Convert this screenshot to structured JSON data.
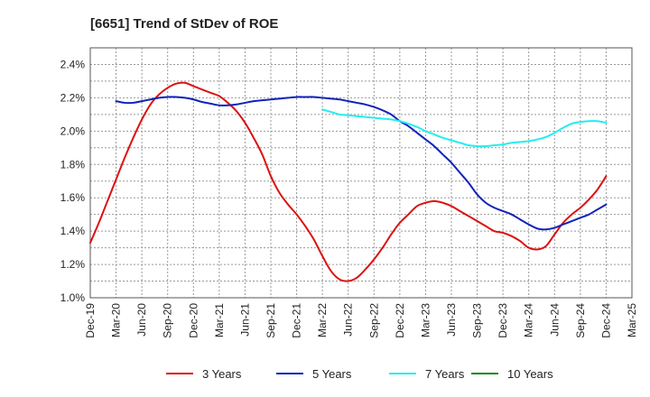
{
  "chart_data": {
    "type": "line",
    "title": "[6651]  Trend of StDev of ROE",
    "xlabel": "",
    "ylabel": "",
    "x_ticks": [
      "Dec-19",
      "Mar-20",
      "Jun-20",
      "Sep-20",
      "Dec-20",
      "Mar-21",
      "Jun-21",
      "Sep-21",
      "Dec-21",
      "Mar-22",
      "Jun-22",
      "Sep-22",
      "Dec-22",
      "Mar-23",
      "Jun-23",
      "Sep-23",
      "Dec-23",
      "Mar-24",
      "Jun-24",
      "Sep-24",
      "Dec-24",
      "Mar-25"
    ],
    "y_ticks": [
      "1.0%",
      "1.2%",
      "1.4%",
      "1.6%",
      "1.8%",
      "2.0%",
      "2.2%",
      "2.4%"
    ],
    "y_tick_values": [
      1.0,
      1.2,
      1.4,
      1.6,
      1.8,
      2.0,
      2.2,
      2.4
    ],
    "ylim": [
      1.0,
      2.5
    ],
    "x_range": [
      "Dec-19",
      "Mar-25"
    ],
    "grid": true,
    "legend_position": "bottom",
    "series": [
      {
        "name": "3 Years",
        "color": "#dd1111",
        "points": [
          [
            "Dec-19",
            1.33
          ],
          [
            "Jan-20",
            1.45
          ],
          [
            "Feb-20",
            1.58
          ],
          [
            "Mar-20",
            1.71
          ],
          [
            "Apr-20",
            1.84
          ],
          [
            "May-20",
            1.96
          ],
          [
            "Jun-20",
            2.07
          ],
          [
            "Jul-20",
            2.16
          ],
          [
            "Aug-20",
            2.22
          ],
          [
            "Sep-20",
            2.26
          ],
          [
            "Oct-20",
            2.285
          ],
          [
            "Nov-20",
            2.29
          ],
          [
            "Dec-20",
            2.27
          ],
          [
            "Jan-21",
            2.25
          ],
          [
            "Feb-21",
            2.23
          ],
          [
            "Mar-21",
            2.21
          ],
          [
            "Apr-21",
            2.17
          ],
          [
            "May-21",
            2.12
          ],
          [
            "Jun-21",
            2.05
          ],
          [
            "Jul-21",
            1.96
          ],
          [
            "Aug-21",
            1.86
          ],
          [
            "Sep-21",
            1.73
          ],
          [
            "Oct-21",
            1.63
          ],
          [
            "Nov-21",
            1.56
          ],
          [
            "Dec-21",
            1.5
          ],
          [
            "Jan-22",
            1.43
          ],
          [
            "Feb-22",
            1.35
          ],
          [
            "Mar-22",
            1.25
          ],
          [
            "Apr-22",
            1.16
          ],
          [
            "May-22",
            1.11
          ],
          [
            "Jun-22",
            1.1
          ],
          [
            "Jul-22",
            1.12
          ],
          [
            "Aug-22",
            1.17
          ],
          [
            "Sep-22",
            1.23
          ],
          [
            "Oct-22",
            1.3
          ],
          [
            "Nov-22",
            1.38
          ],
          [
            "Dec-22",
            1.45
          ],
          [
            "Jan-23",
            1.5
          ],
          [
            "Feb-23",
            1.55
          ],
          [
            "Mar-23",
            1.57
          ],
          [
            "Apr-23",
            1.58
          ],
          [
            "May-23",
            1.57
          ],
          [
            "Jun-23",
            1.55
          ],
          [
            "Jul-23",
            1.52
          ],
          [
            "Aug-23",
            1.49
          ],
          [
            "Sep-23",
            1.46
          ],
          [
            "Oct-23",
            1.43
          ],
          [
            "Nov-23",
            1.4
          ],
          [
            "Dec-23",
            1.39
          ],
          [
            "Jan-24",
            1.37
          ],
          [
            "Feb-24",
            1.34
          ],
          [
            "Mar-24",
            1.3
          ],
          [
            "Apr-24",
            1.29
          ],
          [
            "May-24",
            1.31
          ],
          [
            "Jun-24",
            1.38
          ],
          [
            "Jul-24",
            1.45
          ],
          [
            "Aug-24",
            1.5
          ],
          [
            "Sep-24",
            1.54
          ],
          [
            "Oct-24",
            1.59
          ],
          [
            "Nov-24",
            1.65
          ],
          [
            "Dec-24",
            1.73
          ]
        ]
      },
      {
        "name": "5 Years",
        "color": "#1122bb",
        "points": [
          [
            "Mar-20",
            2.18
          ],
          [
            "Apr-20",
            2.17
          ],
          [
            "May-20",
            2.17
          ],
          [
            "Jun-20",
            2.18
          ],
          [
            "Jul-20",
            2.19
          ],
          [
            "Aug-20",
            2.2
          ],
          [
            "Sep-20",
            2.205
          ],
          [
            "Oct-20",
            2.205
          ],
          [
            "Nov-20",
            2.2
          ],
          [
            "Dec-20",
            2.19
          ],
          [
            "Jan-21",
            2.175
          ],
          [
            "Feb-21",
            2.165
          ],
          [
            "Mar-21",
            2.155
          ],
          [
            "Apr-21",
            2.155
          ],
          [
            "May-21",
            2.16
          ],
          [
            "Jun-21",
            2.17
          ],
          [
            "Jul-21",
            2.18
          ],
          [
            "Aug-21",
            2.185
          ],
          [
            "Sep-21",
            2.19
          ],
          [
            "Oct-21",
            2.195
          ],
          [
            "Nov-21",
            2.2
          ],
          [
            "Dec-21",
            2.205
          ],
          [
            "Jan-22",
            2.205
          ],
          [
            "Feb-22",
            2.205
          ],
          [
            "Mar-22",
            2.2
          ],
          [
            "Apr-22",
            2.195
          ],
          [
            "May-22",
            2.19
          ],
          [
            "Jun-22",
            2.18
          ],
          [
            "Jul-22",
            2.17
          ],
          [
            "Aug-22",
            2.16
          ],
          [
            "Sep-22",
            2.145
          ],
          [
            "Oct-22",
            2.125
          ],
          [
            "Nov-22",
            2.1
          ],
          [
            "Dec-22",
            2.06
          ],
          [
            "Jan-23",
            2.03
          ],
          [
            "Feb-23",
            1.99
          ],
          [
            "Mar-23",
            1.95
          ],
          [
            "Apr-23",
            1.91
          ],
          [
            "May-23",
            1.86
          ],
          [
            "Jun-23",
            1.81
          ],
          [
            "Jul-23",
            1.75
          ],
          [
            "Aug-23",
            1.69
          ],
          [
            "Sep-23",
            1.62
          ],
          [
            "Oct-23",
            1.57
          ],
          [
            "Nov-23",
            1.54
          ],
          [
            "Dec-23",
            1.52
          ],
          [
            "Jan-24",
            1.5
          ],
          [
            "Feb-24",
            1.47
          ],
          [
            "Mar-24",
            1.44
          ],
          [
            "Apr-24",
            1.415
          ],
          [
            "May-24",
            1.41
          ],
          [
            "Jun-24",
            1.42
          ],
          [
            "Jul-24",
            1.44
          ],
          [
            "Aug-24",
            1.46
          ],
          [
            "Sep-24",
            1.48
          ],
          [
            "Oct-24",
            1.5
          ],
          [
            "Nov-24",
            1.53
          ],
          [
            "Dec-24",
            1.56
          ]
        ]
      },
      {
        "name": "7 Years",
        "color": "#22eeee",
        "points": [
          [
            "Mar-22",
            2.13
          ],
          [
            "Apr-22",
            2.115
          ],
          [
            "May-22",
            2.1
          ],
          [
            "Jun-22",
            2.095
          ],
          [
            "Jul-22",
            2.09
          ],
          [
            "Aug-22",
            2.085
          ],
          [
            "Sep-22",
            2.08
          ],
          [
            "Oct-22",
            2.075
          ],
          [
            "Nov-22",
            2.07
          ],
          [
            "Dec-22",
            2.06
          ],
          [
            "Jan-23",
            2.045
          ],
          [
            "Feb-23",
            2.025
          ],
          [
            "Mar-23",
            2.0
          ],
          [
            "Apr-23",
            1.98
          ],
          [
            "May-23",
            1.96
          ],
          [
            "Jun-23",
            1.945
          ],
          [
            "Jul-23",
            1.93
          ],
          [
            "Aug-23",
            1.915
          ],
          [
            "Sep-23",
            1.91
          ],
          [
            "Oct-23",
            1.91
          ],
          [
            "Nov-23",
            1.915
          ],
          [
            "Dec-23",
            1.92
          ],
          [
            "Jan-24",
            1.93
          ],
          [
            "Feb-24",
            1.935
          ],
          [
            "Mar-24",
            1.94
          ],
          [
            "Apr-24",
            1.95
          ],
          [
            "May-24",
            1.965
          ],
          [
            "Jun-24",
            1.99
          ],
          [
            "Jul-24",
            2.02
          ],
          [
            "Aug-24",
            2.045
          ],
          [
            "Sep-24",
            2.055
          ],
          [
            "Oct-24",
            2.06
          ],
          [
            "Nov-24",
            2.06
          ],
          [
            "Dec-24",
            2.05
          ]
        ]
      },
      {
        "name": "10 Years",
        "color": "#118811",
        "points": []
      }
    ]
  }
}
